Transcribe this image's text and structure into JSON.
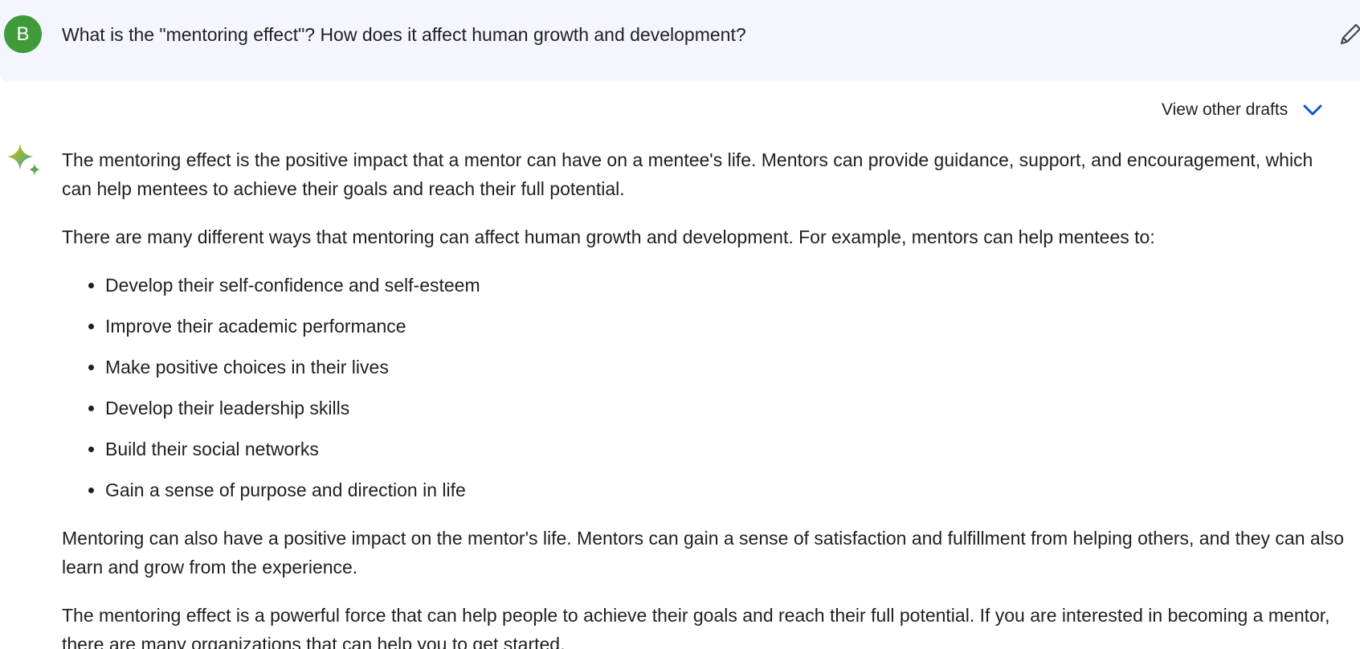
{
  "prompt": {
    "avatar_letter": "B",
    "text": "What is the \"mentoring effect\"? How does it affect human growth and development?",
    "edit_icon": "pencil-icon"
  },
  "drafts": {
    "label": "View other drafts",
    "icon": "chevron-down-icon"
  },
  "response": {
    "icon": "gemini-sparkle-icon",
    "paragraph_1": "The mentoring effect is the positive impact that a mentor can have on a mentee's life. Mentors can provide guidance, support, and encouragement, which can help mentees to achieve their goals and reach their full potential.",
    "paragraph_2": "There are many different ways that mentoring can affect human growth and development. For example, mentors can help mentees to:",
    "bullets": [
      "Develop their self-confidence and self-esteem",
      "Improve their academic performance",
      "Make positive choices in their lives",
      "Develop their leadership skills",
      "Build their social networks",
      "Gain a sense of purpose and direction in life"
    ],
    "paragraph_3": "Mentoring can also have a positive impact on the mentor's life. Mentors can gain a sense of satisfaction and fulfillment from helping others, and they can also learn and grow from the experience.",
    "paragraph_4": "The mentoring effect is a powerful force that can help people to achieve their goals and reach their full potential. If you are interested in becoming a mentor, there are many organizations that can help you to get started."
  },
  "colors": {
    "prompt_bg": "#f3f6fc",
    "avatar_bg": "#3f9a3a",
    "accent_blue": "#0b57d0",
    "text": "#1f1f1f"
  }
}
